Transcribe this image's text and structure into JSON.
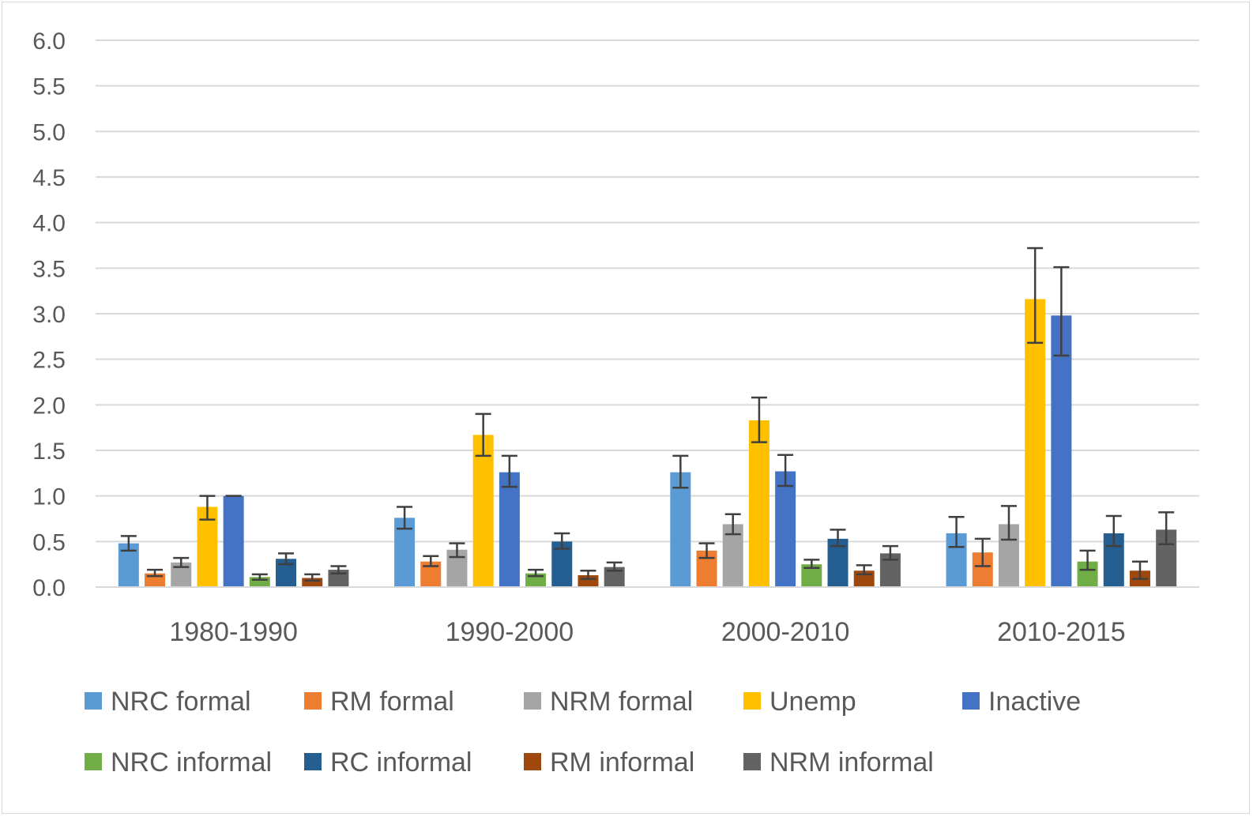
{
  "chart_data": {
    "type": "bar",
    "title": "",
    "xlabel": "",
    "ylabel": "",
    "ylim": [
      0,
      6
    ],
    "yticks": [
      "0.0",
      "0.5",
      "1.0",
      "1.5",
      "2.0",
      "2.5",
      "3.0",
      "3.5",
      "4.0",
      "4.5",
      "5.0",
      "5.5",
      "6.0"
    ],
    "categories": [
      "1980-1990",
      "1990-2000",
      "2000-2010",
      "2010-2015"
    ],
    "grid": true,
    "legend_position": "bottom",
    "error_bars": true,
    "series": [
      {
        "name": "NRC formal",
        "color": "#5b9bd5",
        "values": [
          0.48,
          0.76,
          1.26,
          0.59
        ],
        "err_low": [
          0.4,
          0.64,
          1.09,
          0.44
        ],
        "err_high": [
          0.56,
          0.88,
          1.44,
          0.77
        ]
      },
      {
        "name": "RM formal",
        "color": "#ed7d31",
        "values": [
          0.15,
          0.28,
          0.4,
          0.38
        ],
        "err_low": [
          0.12,
          0.23,
          0.32,
          0.23
        ],
        "err_high": [
          0.19,
          0.34,
          0.48,
          0.53
        ]
      },
      {
        "name": "NRM formal",
        "color": "#a5a5a5",
        "values": [
          0.27,
          0.41,
          0.69,
          0.69
        ],
        "err_low": [
          0.22,
          0.33,
          0.58,
          0.52
        ],
        "err_high": [
          0.32,
          0.48,
          0.8,
          0.89
        ]
      },
      {
        "name": "Unemp",
        "color": "#ffc000",
        "values": [
          0.88,
          1.67,
          1.83,
          3.16
        ],
        "err_low": [
          0.74,
          1.44,
          1.59,
          2.68
        ],
        "err_high": [
          1.0,
          1.9,
          2.08,
          3.72
        ]
      },
      {
        "name": "Inactive",
        "color": "#4472c4",
        "values": [
          1.0,
          1.26,
          1.27,
          2.98
        ],
        "err_low": [
          1.0,
          1.1,
          1.11,
          2.54
        ],
        "err_high": [
          1.0,
          1.44,
          1.45,
          3.51
        ]
      },
      {
        "name": "NRC informal",
        "color": "#70ad47",
        "values": [
          0.11,
          0.15,
          0.25,
          0.28
        ],
        "err_low": [
          0.08,
          0.12,
          0.21,
          0.19
        ],
        "err_high": [
          0.14,
          0.19,
          0.3,
          0.4
        ]
      },
      {
        "name": "RC informal",
        "color": "#255e91",
        "values": [
          0.31,
          0.5,
          0.53,
          0.59
        ],
        "err_low": [
          0.25,
          0.42,
          0.45,
          0.45
        ],
        "err_high": [
          0.37,
          0.59,
          0.63,
          0.78
        ]
      },
      {
        "name": "RM informal",
        "color": "#9e480e",
        "values": [
          0.1,
          0.13,
          0.18,
          0.18
        ],
        "err_low": [
          0.07,
          0.09,
          0.14,
          0.09
        ],
        "err_high": [
          0.14,
          0.18,
          0.24,
          0.28
        ]
      },
      {
        "name": "NRM informal",
        "color": "#636363",
        "values": [
          0.19,
          0.22,
          0.37,
          0.63
        ],
        "err_low": [
          0.15,
          0.18,
          0.3,
          0.47
        ],
        "err_high": [
          0.23,
          0.27,
          0.45,
          0.82
        ]
      }
    ]
  }
}
